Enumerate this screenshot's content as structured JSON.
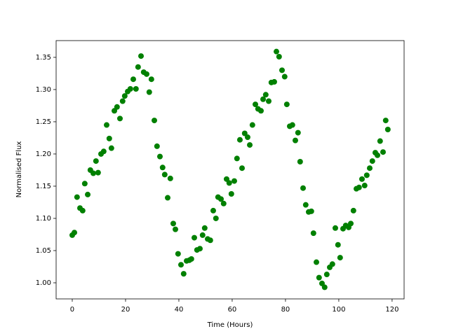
{
  "chart_data": {
    "type": "scatter",
    "x_label": "Time (Hours)",
    "y_label": "Normalised Flux",
    "color": "#008000",
    "x": [
      0,
      0.8,
      1.8,
      2.9,
      3.9,
      4.7,
      5.8,
      6.8,
      7.9,
      8.9,
      9.7,
      10.8,
      11.8,
      12.9,
      13.9,
      14.7,
      15.8,
      16.8,
      17.9,
      18.9,
      19.7,
      20.8,
      21.8,
      22.9,
      23.9,
      24.7,
      25.8,
      26.8,
      27.9,
      28.9,
      29.7,
      30.8,
      31.8,
      32.9,
      33.9,
      34.7,
      35.8,
      36.8,
      37.9,
      38.7,
      39.7,
      40.8,
      41.8,
      42.9,
      43.9,
      44.7,
      45.8,
      46.8,
      47.9,
      48.9,
      49.7,
      50.8,
      51.8,
      52.9,
      53.9,
      54.7,
      55.8,
      56.8,
      57.9,
      58.9,
      59.7,
      60.8,
      61.8,
      62.9,
      63.7,
      64.7,
      65.8,
      66.6,
      67.6,
      68.7,
      69.7,
      70.8,
      71.6,
      72.6,
      73.7,
      74.7,
      75.8,
      76.6,
      77.6,
      78.7,
      79.7,
      80.5,
      81.6,
      82.6,
      83.7,
      84.7,
      85.5,
      86.6,
      87.6,
      88.7,
      89.7,
      90.5,
      91.6,
      92.6,
      93.7,
      94.7,
      95.5,
      96.6,
      97.6,
      98.7,
      99.7,
      100.5,
      101.6,
      102.6,
      103.7,
      104.5,
      105.5,
      106.6,
      107.6,
      108.7,
      109.7,
      110.5,
      111.6,
      112.6,
      113.7,
      114.5,
      115.5,
      116.6,
      117.6,
      118.4
    ],
    "values": [
      1.074,
      1.078,
      1.133,
      1.116,
      1.112,
      1.154,
      1.137,
      1.175,
      1.17,
      1.189,
      1.171,
      1.2,
      1.204,
      1.245,
      1.224,
      1.209,
      1.267,
      1.273,
      1.255,
      1.282,
      1.29,
      1.297,
      1.301,
      1.316,
      1.301,
      1.335,
      1.352,
      1.327,
      1.324,
      1.296,
      1.316,
      1.252,
      1.212,
      1.196,
      1.179,
      1.168,
      1.132,
      1.162,
      1.092,
      1.083,
      1.045,
      1.028,
      1.014,
      1.034,
      1.035,
      1.037,
      1.07,
      1.051,
      1.053,
      1.074,
      1.085,
      1.068,
      1.066,
      1.112,
      1.1,
      1.133,
      1.13,
      1.123,
      1.161,
      1.155,
      1.138,
      1.158,
      1.193,
      1.222,
      1.178,
      1.232,
      1.226,
      1.214,
      1.245,
      1.277,
      1.27,
      1.267,
      1.285,
      1.292,
      1.282,
      1.311,
      1.312,
      1.359,
      1.351,
      1.33,
      1.32,
      1.277,
      1.243,
      1.245,
      1.221,
      1.233,
      1.188,
      1.147,
      1.121,
      1.11,
      1.111,
      1.077,
      1.032,
      1.008,
      0.999,
      0.993,
      1.013,
      1.024,
      1.029,
      1.085,
      1.059,
      1.039,
      1.084,
      1.089,
      1.086,
      1.092,
      1.112,
      1.146,
      1.148,
      1.161,
      1.151,
      1.167,
      1.178,
      1.189,
      1.202,
      1.198,
      1.22,
      1.203,
      1.252,
      1.238
    ],
    "xlim": [
      -6.05,
      124.5
    ],
    "ylim": [
      0.975,
      1.376
    ],
    "xticks": [
      0,
      20,
      40,
      60,
      80,
      100,
      120
    ],
    "yticks": [
      {
        "value": 1.0,
        "label": "1.00"
      },
      1.05,
      {
        "value": 1.1,
        "label": "1.10"
      },
      1.15,
      {
        "value": 1.2,
        "label": "1.20"
      },
      1.25,
      {
        "value": 1.3,
        "label": "1.30"
      },
      1.35
    ]
  }
}
